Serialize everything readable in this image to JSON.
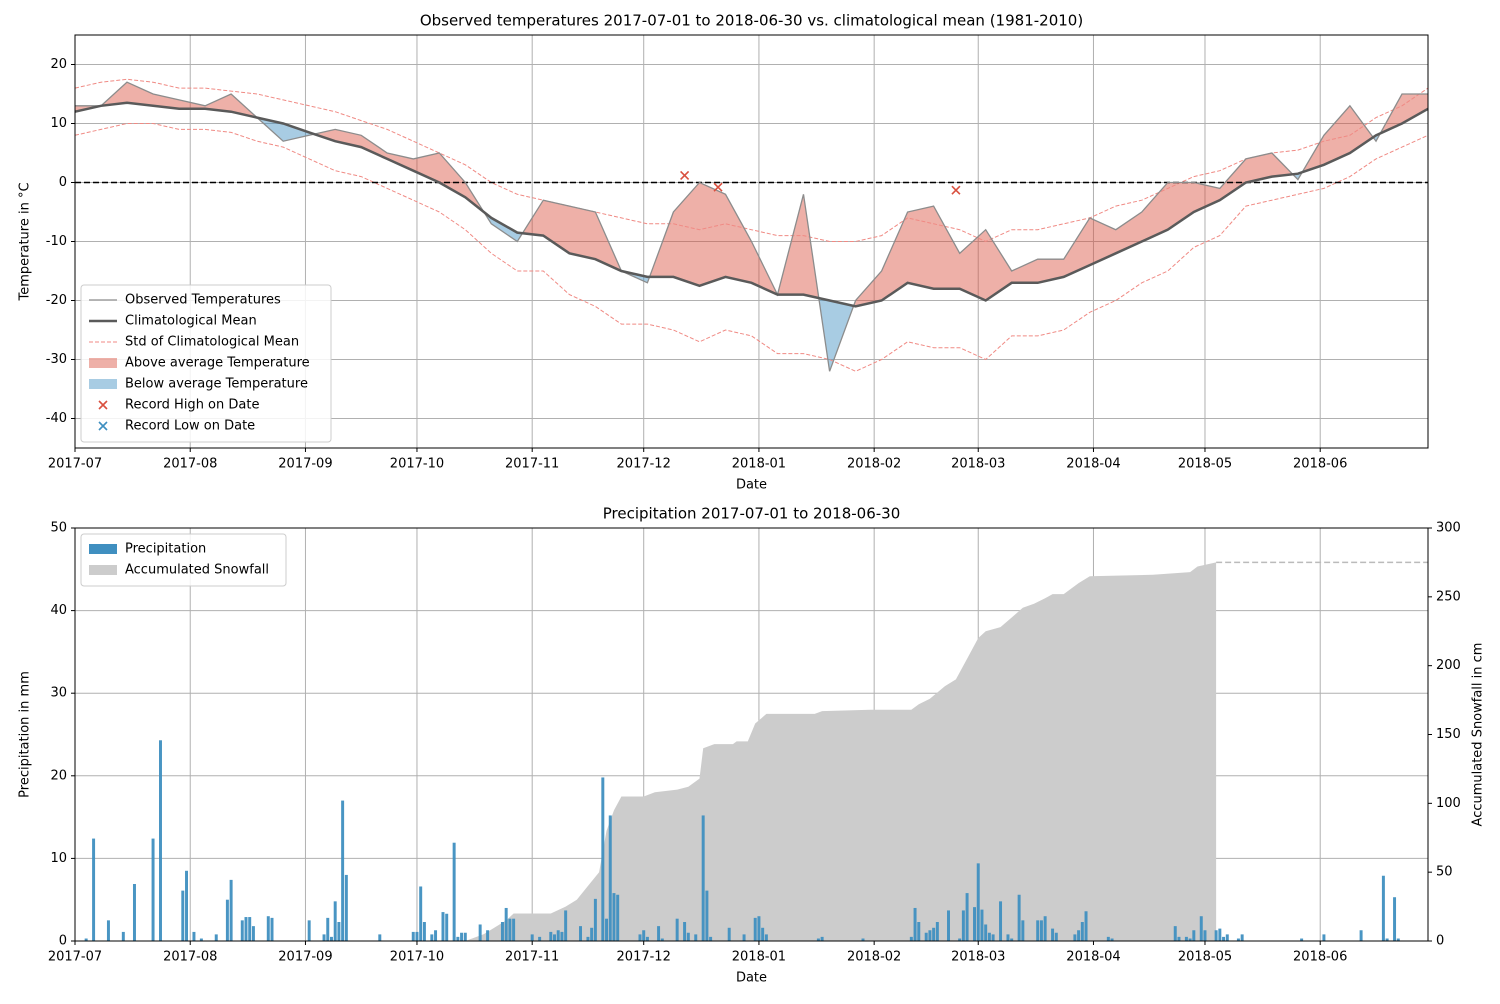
{
  "chart_data": [
    {
      "type": "line",
      "title": "Observed temperatures 2017-07-01 to 2018-06-30 vs. climatological mean (1981-2010)",
      "x_label": "Date",
      "y_label": "Temperature in °C",
      "xlim": [
        0,
        364
      ],
      "ylim": [
        -45,
        25
      ],
      "xticks": [
        {
          "value": 0,
          "label": "2017-07"
        },
        {
          "value": 31,
          "label": "2017-08"
        },
        {
          "value": 62,
          "label": "2017-09"
        },
        {
          "value": 92,
          "label": "2017-10"
        },
        {
          "value": 123,
          "label": "2017-11"
        },
        {
          "value": 153,
          "label": "2017-12"
        },
        {
          "value": 184,
          "label": "2018-01"
        },
        {
          "value": 215,
          "label": "2018-02"
        },
        {
          "value": 243,
          "label": "2018-03"
        },
        {
          "value": 274,
          "label": "2018-04"
        },
        {
          "value": 304,
          "label": "2018-05"
        },
        {
          "value": 335,
          "label": "2018-06"
        }
      ],
      "yticks": [
        -40,
        -30,
        -20,
        -10,
        0,
        10,
        20
      ],
      "grid": true,
      "legend": "lower left",
      "reference_line": 0,
      "x": [
        0,
        7,
        14,
        21,
        28,
        35,
        42,
        49,
        56,
        63,
        70,
        77,
        84,
        91,
        98,
        105,
        112,
        119,
        126,
        133,
        140,
        147,
        154,
        161,
        168,
        175,
        182,
        189,
        196,
        203,
        210,
        217,
        224,
        231,
        238,
        245,
        252,
        259,
        266,
        273,
        280,
        287,
        294,
        301,
        308,
        315,
        322,
        329,
        336,
        343,
        350,
        357,
        364
      ],
      "series": [
        {
          "name": "Observed Temperatures",
          "color": "#8c8c8c",
          "values": [
            13,
            13,
            17,
            15,
            14,
            13,
            15,
            11,
            7,
            8,
            9,
            8,
            5,
            4,
            5,
            0,
            -7,
            -10,
            -3,
            -4,
            -5,
            -15,
            -17,
            -5,
            0,
            -2,
            -10,
            -19,
            -2,
            -32,
            -20,
            -15,
            -5,
            -4,
            -12,
            -8,
            -15,
            -13,
            -13,
            -6,
            -8,
            -5,
            0,
            0,
            -1,
            4,
            5,
            0.5,
            8,
            13,
            7,
            15,
            15
          ]
        },
        {
          "name": "Climatological Mean",
          "color": "#5a5a5a",
          "values": [
            12,
            13,
            13.5,
            13,
            12.5,
            12.5,
            12,
            11,
            10,
            8.5,
            7,
            6,
            4,
            2,
            0,
            -2.5,
            -6,
            -8.5,
            -9,
            -12,
            -13,
            -15,
            -16,
            -16,
            -17.5,
            -16,
            -17,
            -19,
            -19,
            -20,
            -21,
            -20,
            -17,
            -18,
            -18,
            -20,
            -17,
            -17,
            -16,
            -14,
            -12,
            -10,
            -8,
            -5,
            -3,
            0,
            1,
            1.5,
            3,
            5,
            8,
            10,
            12.5
          ]
        }
      ],
      "std_band": {
        "name": "Std of Climatological Mean",
        "color": "#f08a84",
        "upper": [
          16,
          17,
          17.5,
          17,
          16,
          16,
          15.5,
          15,
          14,
          13,
          12,
          10.5,
          9,
          7,
          5,
          3,
          0,
          -2,
          -3,
          -4,
          -5,
          -6,
          -7,
          -7,
          -8,
          -7,
          -8,
          -9,
          -9,
          -10,
          -10,
          -9,
          -6,
          -7,
          -8,
          -10,
          -8,
          -8,
          -7,
          -6,
          -4,
          -3,
          -1,
          1,
          2,
          4,
          5,
          5.5,
          7,
          8,
          11,
          13,
          16
        ],
        "lower": [
          8,
          9,
          10,
          10,
          9,
          9,
          8.5,
          7,
          6,
          4,
          2,
          1,
          -1,
          -3,
          -5,
          -8,
          -12,
          -15,
          -15,
          -19,
          -21,
          -24,
          -24,
          -25,
          -27,
          -25,
          -26,
          -29,
          -29,
          -30,
          -32,
          -30,
          -27,
          -28,
          -28,
          -30,
          -26,
          -26,
          -25,
          -22,
          -20,
          -17,
          -15,
          -11,
          -9,
          -4,
          -3,
          -2,
          -1,
          1,
          4,
          6,
          8
        ]
      },
      "fills": [
        {
          "name": "Above average Temperature",
          "color": "#d9503f"
        },
        {
          "name": "Below average Temperature",
          "color": "#3f8fc0"
        }
      ],
      "markers": [
        {
          "name": "Record High on Date",
          "color": "#d9503f",
          "x": [
            164,
            173,
            237
          ],
          "values": [
            1.2,
            -0.8,
            -1.3
          ]
        },
        {
          "name": "Record Low on Date",
          "color": "#3f8fc0",
          "x": [],
          "values": []
        }
      ]
    },
    {
      "type": "bar",
      "title": "Precipitation 2017-07-01 to 2018-06-30",
      "x_label": "Date",
      "y_label": "Precipitation in mm",
      "y2_label": "Accumulated Snowfall in cm",
      "xlim": [
        0,
        364
      ],
      "ylim": [
        0,
        50
      ],
      "y2lim": [
        0,
        300
      ],
      "xticks": [
        {
          "value": 0,
          "label": "2017-07"
        },
        {
          "value": 31,
          "label": "2017-08"
        },
        {
          "value": 62,
          "label": "2017-09"
        },
        {
          "value": 92,
          "label": "2017-10"
        },
        {
          "value": 123,
          "label": "2017-11"
        },
        {
          "value": 153,
          "label": "2017-12"
        },
        {
          "value": 184,
          "label": "2018-01"
        },
        {
          "value": 215,
          "label": "2018-02"
        },
        {
          "value": 243,
          "label": "2018-03"
        },
        {
          "value": 274,
          "label": "2018-04"
        },
        {
          "value": 304,
          "label": "2018-05"
        },
        {
          "value": 335,
          "label": "2018-06"
        }
      ],
      "yticks": [
        0,
        10,
        20,
        30,
        40,
        50
      ],
      "y2ticks": [
        0,
        50,
        100,
        150,
        200,
        250,
        300
      ],
      "grid": true,
      "legend": "upper left",
      "series": [
        {
          "name": "Precipitation",
          "color": "#3f8fc0",
          "x": [
            3,
            5,
            9,
            13,
            16,
            21,
            23,
            29,
            30,
            32,
            34,
            38,
            41,
            42,
            45,
            46,
            47,
            48,
            52,
            53,
            63,
            67,
            68,
            69,
            70,
            71,
            72,
            73,
            82,
            91,
            92,
            93,
            94,
            96,
            97,
            99,
            100,
            102,
            103,
            104,
            105,
            109,
            111,
            115,
            116,
            117,
            118,
            123,
            125,
            128,
            129,
            130,
            131,
            132,
            136,
            138,
            139,
            140,
            142,
            143,
            144,
            145,
            146,
            152,
            153,
            154,
            157,
            158,
            162,
            164,
            165,
            167,
            169,
            170,
            171,
            176,
            180,
            183,
            184,
            185,
            186,
            200,
            201,
            212,
            225,
            226,
            227,
            229,
            230,
            231,
            232,
            235,
            238,
            239,
            240,
            242,
            243,
            244,
            245,
            246,
            247,
            249,
            251,
            252,
            254,
            255,
            259,
            260,
            261,
            263,
            264,
            269,
            270,
            271,
            272,
            278,
            279,
            296,
            297,
            299,
            300,
            301,
            303,
            304,
            307,
            308,
            309,
            310,
            313,
            314,
            330,
            336,
            346,
            352,
            353,
            355,
            356
          ],
          "values": [
            0.3,
            12.4,
            2.5,
            1.1,
            6.9,
            12.4,
            24.3,
            6.1,
            8.5,
            1.1,
            0.3,
            0.8,
            5.0,
            7.4,
            2.5,
            2.9,
            2.9,
            1.8,
            3.0,
            2.8,
            2.5,
            0.8,
            2.8,
            0.5,
            4.8,
            2.3,
            17,
            8,
            0.8,
            1.1,
            1.1,
            6.6,
            2.3,
            0.8,
            1.3,
            3.5,
            3.3,
            11.9,
            0.5,
            1.0,
            1.0,
            2.0,
            1.3,
            2.3,
            4.0,
            2.7,
            2.7,
            0.8,
            0.5,
            1.1,
            0.8,
            1.3,
            1.1,
            3.7,
            1.8,
            0.5,
            1.6,
            5.1,
            19.8,
            2.7,
            15.2,
            5.8,
            5.6,
            0.8,
            1.3,
            0.5,
            1.8,
            0.3,
            2.7,
            2.3,
            1.0,
            0.8,
            15.2,
            6.1,
            0.5,
            1.6,
            0.8,
            2.8,
            3.0,
            1.6,
            0.8,
            0.3,
            0.5,
            0.3,
            0.5,
            4.0,
            2.3,
            1.0,
            1.3,
            1.6,
            2.3,
            3.7,
            0.3,
            3.7,
            5.8,
            4.1,
            9.4,
            3.8,
            2.0,
            1.0,
            0.8,
            4.8,
            0.8,
            0.3,
            5.6,
            2.5,
            2.5,
            2.5,
            3.0,
            1.5,
            1.0,
            0.8,
            1.3,
            2.3,
            3.6,
            0.5,
            0.3,
            1.8,
            0.5,
            0.5,
            0.3,
            1.3,
            3.0,
            1.3,
            1.3,
            1.5,
            0.5,
            0.8,
            0.3,
            0.8,
            0.3,
            0.8,
            1.3,
            7.9,
            0.3,
            5.3,
            0.3
          ]
        },
        {
          "name": "Accumulated Snowfall",
          "color": "#cccccc",
          "axis": "y2",
          "x": [
            0,
            105,
            110,
            116,
            118,
            128,
            132,
            135,
            138,
            141,
            143,
            145,
            147,
            153,
            156,
            162,
            165,
            168,
            169,
            172,
            177,
            178,
            181,
            183,
            186,
            199,
            201,
            214,
            225,
            227,
            230,
            234,
            237,
            240,
            243,
            245,
            249,
            252,
            255,
            258,
            261,
            263,
            266,
            270,
            273,
            290,
            300,
            302,
            307
          ],
          "values": [
            0,
            0,
            5,
            15,
            20,
            20,
            25,
            30,
            40,
            50,
            80,
            95,
            105,
            105,
            108,
            110,
            112,
            118,
            140,
            143,
            143,
            145,
            145,
            158,
            165,
            165,
            167,
            168,
            168,
            172,
            176,
            185,
            190,
            205,
            220,
            225,
            228,
            235,
            242,
            245,
            249,
            252,
            252,
            260,
            265,
            266,
            268,
            272,
            275
          ]
        }
      ]
    }
  ]
}
